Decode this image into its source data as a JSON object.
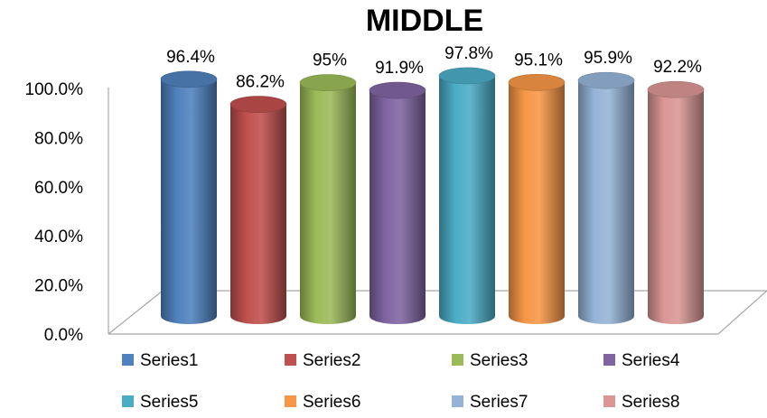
{
  "chart_data": {
    "type": "bar",
    "style": "3d-cylinder",
    "title": "MIDDLE",
    "ylim": [
      0,
      100
    ],
    "y_ticks": [
      "0.0%",
      "20.0%",
      "40.0%",
      "60.0%",
      "80.0%",
      "100.0%"
    ],
    "y_tick_values": [
      0,
      20,
      40,
      60,
      80,
      100
    ],
    "grid": false,
    "legend_position": "bottom",
    "series": [
      {
        "name": "Series1",
        "value": 96.4,
        "label": "96.4%",
        "color": "#4F81BD"
      },
      {
        "name": "Series2",
        "value": 86.2,
        "label": "86.2%",
        "color": "#C0504D"
      },
      {
        "name": "Series3",
        "value": 95,
        "label": "95%",
        "color": "#9BBB59"
      },
      {
        "name": "Series4",
        "value": 91.9,
        "label": "91.9%",
        "color": "#8064A2"
      },
      {
        "name": "Series5",
        "value": 97.8,
        "label": "97.8%",
        "color": "#4BACC6"
      },
      {
        "name": "Series6",
        "value": 95.1,
        "label": "95.1%",
        "color": "#F79646"
      },
      {
        "name": "Series7",
        "value": 95.9,
        "label": "95.9%",
        "color": "#95B3D7"
      },
      {
        "name": "Series8",
        "value": 92.2,
        "label": "92.2%",
        "color": "#D99694"
      }
    ]
  }
}
